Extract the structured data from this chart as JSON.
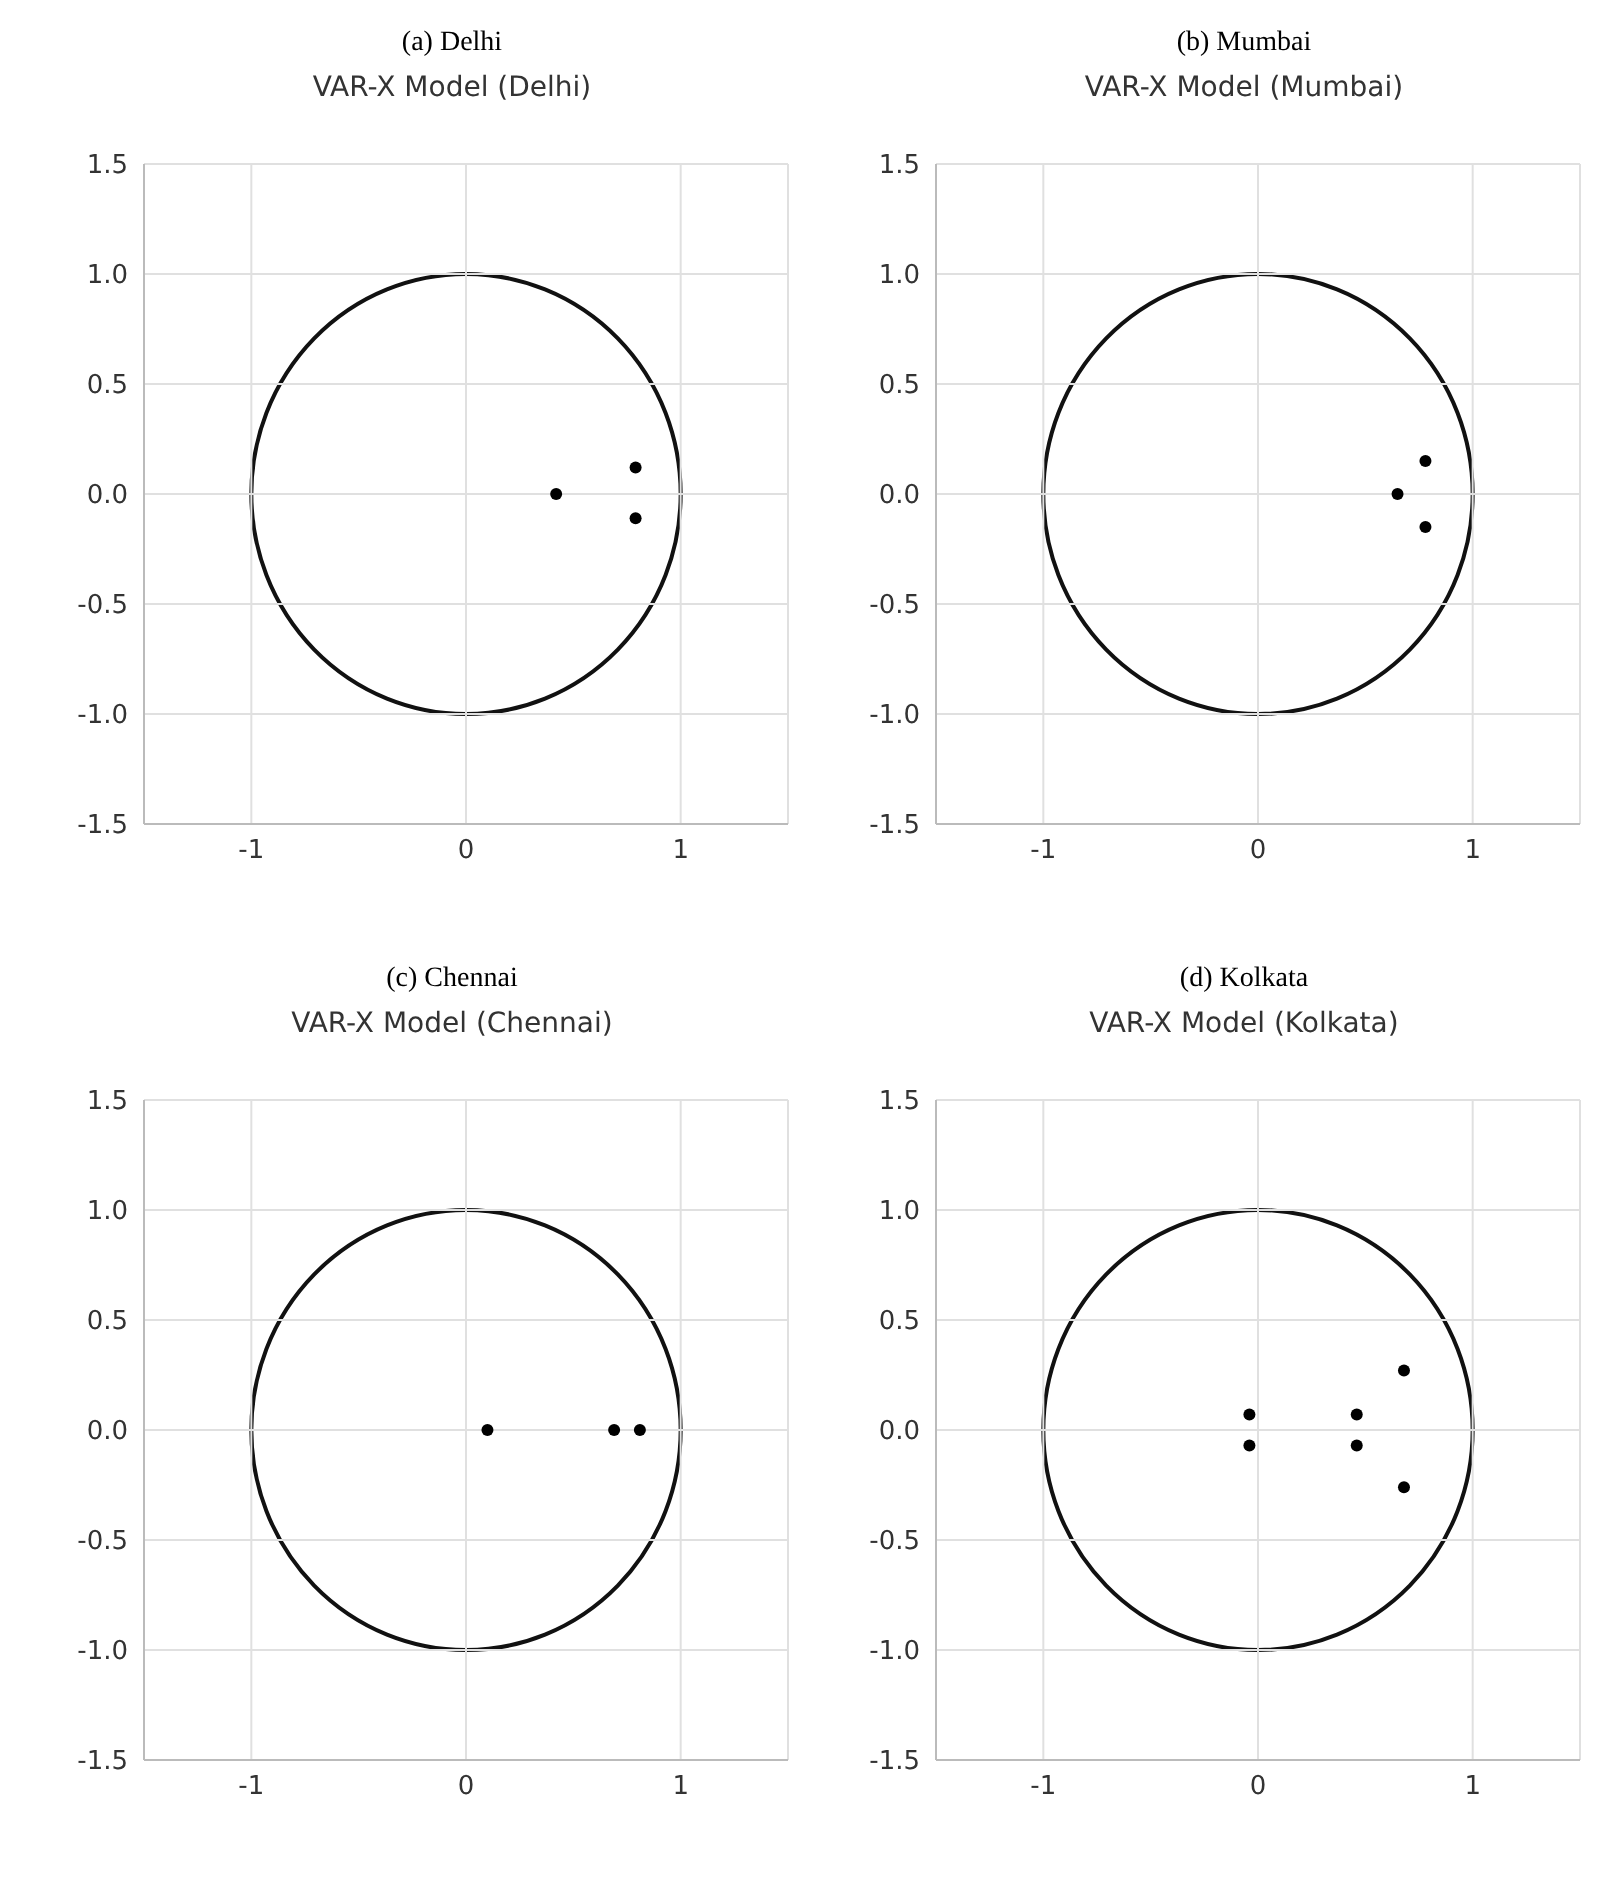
{
  "chart_data": [
    {
      "type": "scatter",
      "title": "(a) Delhi",
      "subtitle": "VAR-X Model (Delhi)",
      "xlim": [
        -1.5,
        1.5
      ],
      "xticks": [
        -1,
        0,
        1
      ],
      "ylim": [
        -1.5,
        1.5
      ],
      "yticks": [
        {
          "value": -1.5,
          "label": "-1.5"
        },
        {
          "value": -1,
          "label": "-1.0"
        },
        {
          "value": -0.5,
          "label": "-0.5"
        },
        {
          "value": 0,
          "label": "0.0"
        },
        {
          "value": 0.5,
          "label": "0.5"
        },
        {
          "value": 1,
          "label": "1.0"
        },
        {
          "value": 1.5,
          "label": "1.5"
        }
      ],
      "grid": true,
      "marker": "circle",
      "series": [
        {
          "type": "scatter",
          "color": "#000000",
          "x": [
            0.42,
            0.79,
            0.79
          ],
          "values": [
            0,
            0.12,
            -0.11
          ]
        }
      ]
    },
    {
      "type": "scatter",
      "title": "(b) Mumbai",
      "subtitle": "VAR-X Model (Mumbai)",
      "xlim": [
        -1.5,
        1.5
      ],
      "xticks": [
        -1,
        0,
        1
      ],
      "ylim": [
        -1.5,
        1.5
      ],
      "yticks": [
        {
          "value": -1.5,
          "label": "-1.5"
        },
        {
          "value": -1,
          "label": "-1.0"
        },
        {
          "value": -0.5,
          "label": "-0.5"
        },
        {
          "value": 0,
          "label": "0.0"
        },
        {
          "value": 0.5,
          "label": "0.5"
        },
        {
          "value": 1,
          "label": "1.0"
        },
        {
          "value": 1.5,
          "label": "1.5"
        }
      ],
      "grid": true,
      "marker": "circle",
      "series": [
        {
          "type": "scatter",
          "color": "#000000",
          "x": [
            0.65,
            0.78,
            0.78
          ],
          "values": [
            0,
            0.15,
            -0.15
          ]
        }
      ]
    },
    {
      "type": "scatter",
      "title": "(c) Chennai",
      "subtitle": "VAR-X Model (Chennai)",
      "xlim": [
        -1.5,
        1.5
      ],
      "xticks": [
        -1,
        0,
        1
      ],
      "ylim": [
        -1.5,
        1.5
      ],
      "yticks": [
        {
          "value": -1.5,
          "label": "-1.5"
        },
        {
          "value": -1,
          "label": "-1.0"
        },
        {
          "value": -0.5,
          "label": "-0.5"
        },
        {
          "value": 0,
          "label": "0.0"
        },
        {
          "value": 0.5,
          "label": "0.5"
        },
        {
          "value": 1,
          "label": "1.0"
        },
        {
          "value": 1.5,
          "label": "1.5"
        }
      ],
      "grid": true,
      "marker": "circle",
      "series": [
        {
          "type": "scatter",
          "color": "#000000",
          "x": [
            0.1,
            0.69,
            0.81
          ],
          "values": [
            0,
            0,
            0
          ]
        }
      ]
    },
    {
      "type": "scatter",
      "title": "(d) Kolkata",
      "subtitle": "VAR-X Model (Kolkata)",
      "xlim": [
        -1.5,
        1.5
      ],
      "xticks": [
        -1,
        0,
        1
      ],
      "ylim": [
        -1.5,
        1.5
      ],
      "yticks": [
        {
          "value": -1.5,
          "label": "-1.5"
        },
        {
          "value": -1,
          "label": "-1.0"
        },
        {
          "value": -0.5,
          "label": "-0.5"
        },
        {
          "value": 0,
          "label": "0.0"
        },
        {
          "value": 0.5,
          "label": "0.5"
        },
        {
          "value": 1,
          "label": "1.0"
        },
        {
          "value": 1.5,
          "label": "1.5"
        }
      ],
      "grid": true,
      "marker": "circle",
      "series": [
        {
          "type": "scatter",
          "color": "#000000",
          "x": [
            -0.04,
            -0.04,
            0.46,
            0.46,
            0.68,
            0.68
          ],
          "values": [
            0.07,
            -0.07,
            0.07,
            -0.07,
            0.27,
            -0.26
          ]
        }
      ]
    }
  ]
}
